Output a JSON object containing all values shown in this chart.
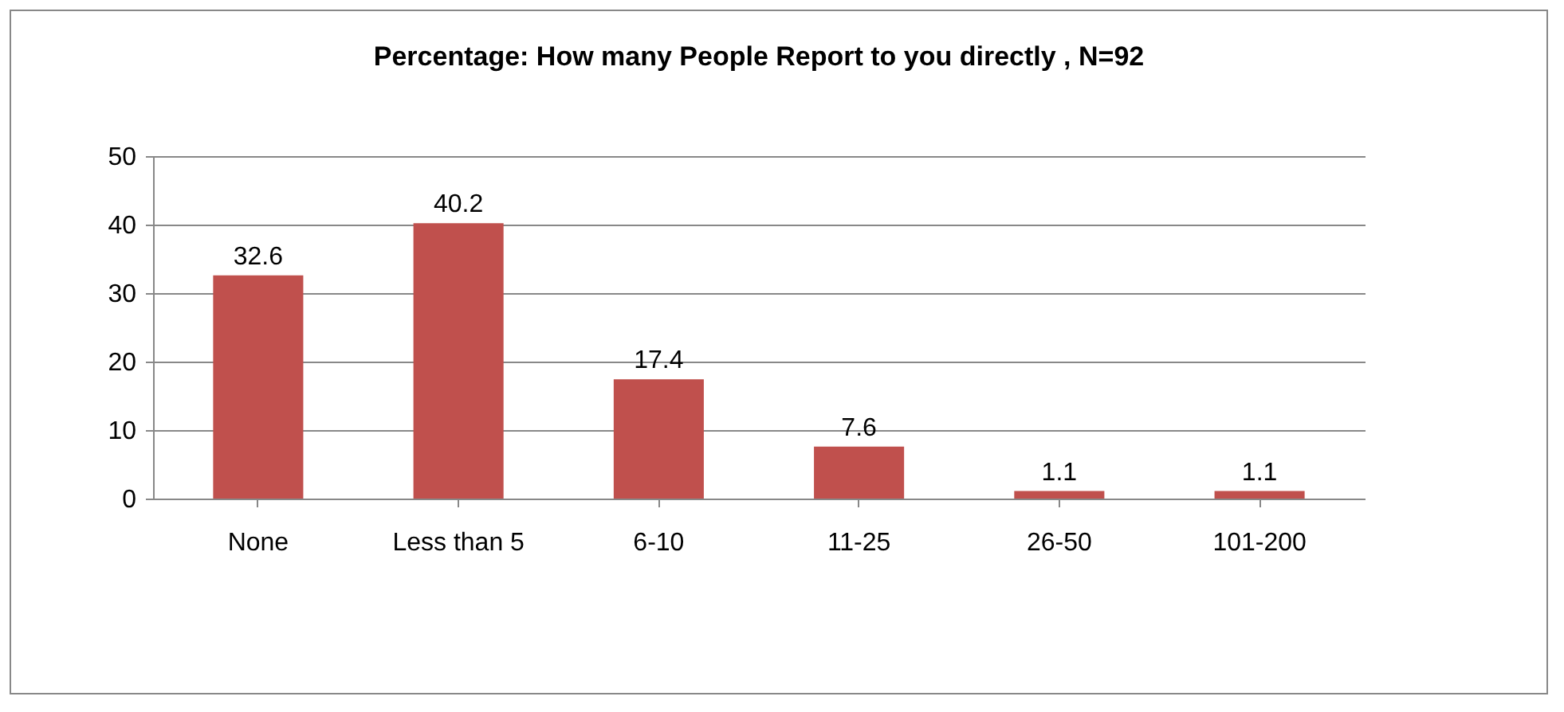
{
  "chart_data": {
    "type": "bar",
    "title": "Percentage: How many People Report to you directly , N=92",
    "categories": [
      "None",
      "Less than 5",
      "6-10",
      "11-25",
      "26-50",
      "101-200"
    ],
    "values": [
      32.6,
      40.2,
      17.4,
      7.6,
      1.1,
      1.1
    ],
    "color": "#c0504d",
    "ylim": [
      0,
      50
    ],
    "yticks": [
      0,
      10,
      20,
      30,
      40,
      50
    ],
    "grid": "y",
    "data_labels": true
  }
}
